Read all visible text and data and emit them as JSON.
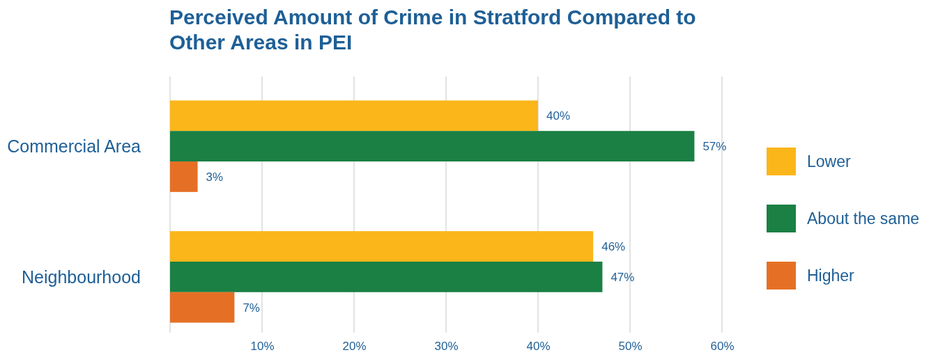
{
  "chart_data": {
    "type": "bar",
    "orientation": "horizontal",
    "title": "Perceived Amount of Crime in Stratford Compared to Other Areas in PEI",
    "categories": [
      "Commercial Area",
      "Neighbourhood"
    ],
    "series": [
      {
        "name": "Lower",
        "color": "#fbb61a",
        "values": [
          40,
          46
        ],
        "value_labels": [
          "40%",
          "46%"
        ]
      },
      {
        "name": "About the same",
        "color": "#1a8044",
        "values": [
          57,
          47
        ],
        "value_labels": [
          "57%",
          "47%"
        ]
      },
      {
        "name": "Higher",
        "color": "#e57025",
        "values": [
          3,
          7
        ],
        "value_labels": [
          "3%",
          "7%"
        ]
      }
    ],
    "xlim": [
      0,
      60
    ],
    "xticks": [
      {
        "value": 0,
        "label": null
      },
      {
        "value": 10,
        "label": "10%"
      },
      {
        "value": 20,
        "label": "20%"
      },
      {
        "value": 30,
        "label": "30%"
      },
      {
        "value": 40,
        "label": "40%"
      },
      {
        "value": 50,
        "label": "50%"
      },
      {
        "value": 60,
        "label": "60%"
      }
    ],
    "grid": "x",
    "legend": "right"
  }
}
